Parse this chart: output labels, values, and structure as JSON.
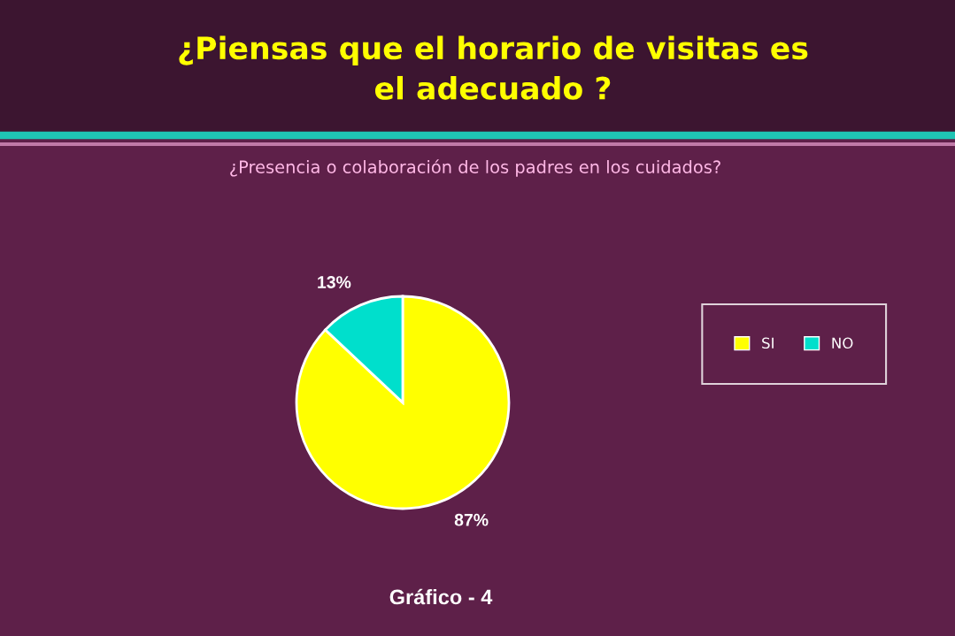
{
  "chart_data": {
    "type": "pie",
    "title": "¿Piensas que el horario de visitas es\nel adecuado ?",
    "subtitle": "¿Presencia o colaboración de los padres en los cuidados?",
    "categories": [
      "SI",
      "NO"
    ],
    "values": [
      87,
      13
    ],
    "colors": [
      "#ffff00",
      "#00dfcc"
    ],
    "value_labels": [
      "87%",
      "13%"
    ],
    "legend": "right",
    "annotations": [
      "Gráfico - 4"
    ]
  }
}
